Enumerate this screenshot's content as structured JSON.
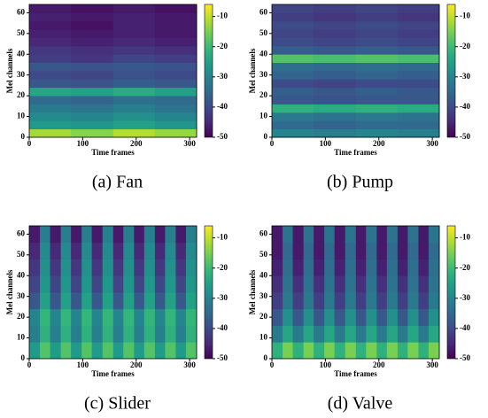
{
  "chart_data": [
    {
      "type": "heatmap",
      "caption": "(a) Fan",
      "xlabel": "Time frames",
      "ylabel": "Mel channels",
      "xlim": [
        0,
        313
      ],
      "ylim": [
        0,
        64
      ],
      "xticks": [
        0,
        100,
        200,
        300
      ],
      "yticks": [
        0,
        10,
        20,
        30,
        40,
        50,
        60
      ],
      "colormap": "viridis",
      "clim": [
        -50,
        -6
      ],
      "cticks": [
        -10,
        -20,
        -30,
        -40,
        -50
      ],
      "x_edges": [
        0,
        78,
        157,
        235,
        313
      ],
      "y_edges": [
        0,
        4,
        8,
        12,
        16,
        20,
        24,
        28,
        32,
        36,
        40,
        44,
        48,
        52,
        56,
        60,
        64
      ],
      "z": [
        [
          -12,
          -14,
          -11,
          -13
        ],
        [
          -26,
          -27,
          -25,
          -27
        ],
        [
          -29,
          -30,
          -28,
          -30
        ],
        [
          -32,
          -33,
          -31,
          -33
        ],
        [
          -35,
          -36,
          -34,
          -35
        ],
        [
          -24,
          -25,
          -23,
          -25
        ],
        [
          -38,
          -39,
          -37,
          -38
        ],
        [
          -40,
          -41,
          -39,
          -40
        ],
        [
          -38,
          -39,
          -38,
          -39
        ],
        [
          -42,
          -43,
          -41,
          -42
        ],
        [
          -43,
          -44,
          -43,
          -44
        ],
        [
          -45,
          -46,
          -45,
          -46
        ],
        [
          -46,
          -47,
          -46,
          -47
        ],
        [
          -47,
          -48,
          -46,
          -47
        ],
        [
          -46,
          -47,
          -46,
          -47
        ],
        [
          -47,
          -48,
          -47,
          -48
        ]
      ]
    },
    {
      "type": "heatmap",
      "caption": "(b) Pump",
      "xlabel": "Time frames",
      "ylabel": "Mel channels",
      "xlim": [
        0,
        313
      ],
      "ylim": [
        0,
        64
      ],
      "xticks": [
        0,
        100,
        200,
        300
      ],
      "yticks": [
        0,
        10,
        20,
        30,
        40,
        50,
        60
      ],
      "colormap": "viridis",
      "clim": [
        -50,
        -6
      ],
      "cticks": [
        -10,
        -20,
        -30,
        -40,
        -50
      ],
      "x_edges": [
        0,
        78,
        157,
        235,
        313
      ],
      "y_edges": [
        0,
        4,
        8,
        12,
        16,
        20,
        24,
        28,
        32,
        36,
        40,
        44,
        48,
        52,
        56,
        60,
        64
      ],
      "z": [
        [
          -30,
          -31,
          -30,
          -31
        ],
        [
          -35,
          -36,
          -35,
          -35
        ],
        [
          -32,
          -33,
          -32,
          -33
        ],
        [
          -22,
          -23,
          -22,
          -23
        ],
        [
          -38,
          -39,
          -38,
          -38
        ],
        [
          -37,
          -38,
          -37,
          -38
        ],
        [
          -40,
          -41,
          -40,
          -40
        ],
        [
          -36,
          -37,
          -36,
          -37
        ],
        [
          -34,
          -35,
          -34,
          -35
        ],
        [
          -18,
          -19,
          -18,
          -19
        ],
        [
          -37,
          -38,
          -37,
          -38
        ],
        [
          -40,
          -41,
          -40,
          -41
        ],
        [
          -41,
          -42,
          -41,
          -42
        ],
        [
          -40,
          -41,
          -40,
          -41
        ],
        [
          -42,
          -43,
          -42,
          -43
        ],
        [
          -41,
          -42,
          -41,
          -42
        ]
      ]
    },
    {
      "type": "heatmap",
      "caption": "(c) Slider",
      "xlabel": "Time frames",
      "ylabel": "Mel channels",
      "xlim": [
        0,
        313
      ],
      "ylim": [
        0,
        64
      ],
      "xticks": [
        0,
        100,
        200,
        300
      ],
      "yticks": [
        0,
        10,
        20,
        30,
        40,
        50,
        60
      ],
      "colormap": "viridis",
      "clim": [
        -50,
        -6
      ],
      "cticks": [
        -10,
        -20,
        -30,
        -40,
        -50
      ],
      "x_edges": [
        0,
        20,
        39,
        59,
        78,
        98,
        117,
        137,
        157,
        176,
        196,
        215,
        235,
        254,
        274,
        293,
        313
      ],
      "y_edges": [
        0,
        8,
        16,
        24,
        32,
        40,
        48,
        56,
        64
      ],
      "z": [
        [
          -26,
          -18,
          -26,
          -18,
          -26,
          -18,
          -26,
          -18,
          -26,
          -18,
          -26,
          -18,
          -26,
          -18,
          -26,
          -18
        ],
        [
          -31,
          -22,
          -31,
          -22,
          -31,
          -22,
          -31,
          -22,
          -31,
          -22,
          -31,
          -22,
          -31,
          -22,
          -31,
          -22
        ],
        [
          -30,
          -21,
          -30,
          -21,
          -30,
          -21,
          -30,
          -21,
          -30,
          -21,
          -30,
          -21,
          -30,
          -21,
          -30,
          -21
        ],
        [
          -38,
          -25,
          -38,
          -25,
          -38,
          -25,
          -38,
          -25,
          -38,
          -25,
          -38,
          -25,
          -38,
          -25,
          -38,
          -25
        ],
        [
          -41,
          -27,
          -41,
          -27,
          -41,
          -27,
          -41,
          -27,
          -41,
          -27,
          -41,
          -27,
          -41,
          -27,
          -41,
          -27
        ],
        [
          -43,
          -28,
          -43,
          -28,
          -43,
          -28,
          -43,
          -28,
          -43,
          -28,
          -43,
          -28,
          -43,
          -28,
          -43,
          -28
        ],
        [
          -45,
          -29,
          -45,
          -29,
          -45,
          -29,
          -45,
          -29,
          -45,
          -29,
          -45,
          -29,
          -45,
          -29,
          -45,
          -29
        ],
        [
          -47,
          -31,
          -47,
          -31,
          -47,
          -31,
          -47,
          -31,
          -47,
          -31,
          -47,
          -31,
          -47,
          -31,
          -47,
          -31
        ]
      ]
    },
    {
      "type": "heatmap",
      "caption": "(d) Valve",
      "xlabel": "Time frames",
      "ylabel": "Mel channels",
      "xlim": [
        0,
        313
      ],
      "ylim": [
        0,
        64
      ],
      "xticks": [
        0,
        100,
        200,
        300
      ],
      "yticks": [
        0,
        10,
        20,
        30,
        40,
        50,
        60
      ],
      "colormap": "viridis",
      "clim": [
        -50,
        -6
      ],
      "cticks": [
        -10,
        -20,
        -30,
        -40,
        -50
      ],
      "x_edges": [
        0,
        20,
        39,
        59,
        78,
        98,
        117,
        137,
        157,
        176,
        196,
        215,
        235,
        254,
        274,
        293,
        313
      ],
      "y_edges": [
        0,
        8,
        16,
        24,
        32,
        40,
        48,
        56,
        64
      ],
      "z": [
        [
          -22,
          -15,
          -22,
          -15,
          -22,
          -15,
          -22,
          -15,
          -22,
          -15,
          -22,
          -15,
          -22,
          -15,
          -22,
          -15
        ],
        [
          -32,
          -24,
          -32,
          -24,
          -32,
          -24,
          -32,
          -24,
          -32,
          -24,
          -32,
          -24,
          -32,
          -24,
          -32,
          -24
        ],
        [
          -38,
          -28,
          -38,
          -28,
          -38,
          -28,
          -38,
          -28,
          -38,
          -28,
          -38,
          -28,
          -38,
          -28,
          -38,
          -28
        ],
        [
          -42,
          -32,
          -42,
          -32,
          -42,
          -32,
          -42,
          -32,
          -42,
          -32,
          -42,
          -32,
          -42,
          -32,
          -42,
          -32
        ],
        [
          -44,
          -33,
          -44,
          -33,
          -44,
          -33,
          -44,
          -33,
          -44,
          -33,
          -44,
          -33,
          -44,
          -33,
          -44,
          -33
        ],
        [
          -46,
          -34,
          -46,
          -34,
          -46,
          -34,
          -46,
          -34,
          -46,
          -34,
          -46,
          -34,
          -46,
          -34,
          -46,
          -34
        ],
        [
          -47,
          -35,
          -47,
          -35,
          -47,
          -35,
          -47,
          -35,
          -47,
          -35,
          -47,
          -35,
          -47,
          -35,
          -47,
          -35
        ],
        [
          -47,
          -33,
          -47,
          -33,
          -47,
          -33,
          -47,
          -33,
          -47,
          -33,
          -47,
          -33,
          -47,
          -33,
          -47,
          -33
        ]
      ]
    }
  ]
}
